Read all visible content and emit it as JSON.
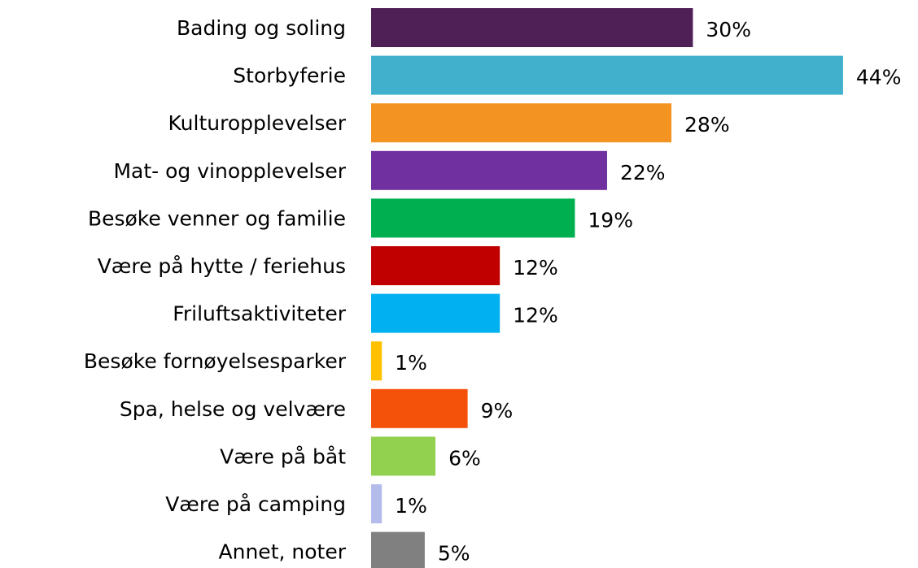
{
  "chart_data": {
    "type": "bar",
    "orientation": "horizontal",
    "categories": [
      "Bading og soling",
      "Storbyferie",
      "Kulturopplevelser",
      "Mat- og vinopplevelser",
      "Besøke venner og familie",
      "Være på hytte / feriehus",
      "Friluftsaktiviteter",
      "Besøke fornøyelsesparker",
      "Spa, helse og velvære",
      "Være på båt",
      "Være på camping",
      "Annet, noter"
    ],
    "values": [
      30,
      44,
      28,
      22,
      19,
      12,
      12,
      1,
      9,
      6,
      1,
      5
    ],
    "value_labels": [
      "30%",
      "44%",
      "28%",
      "22%",
      "19%",
      "12%",
      "12%",
      "1%",
      "9%",
      "6%",
      "1%",
      "5%"
    ],
    "colors": [
      "#4e2056",
      "#41b0cc",
      "#f39321",
      "#7030a0",
      "#00b050",
      "#c00000",
      "#00b0f0",
      "#ffc000",
      "#f4520a",
      "#92d050",
      "#b4bcec",
      "#808080"
    ]
  }
}
